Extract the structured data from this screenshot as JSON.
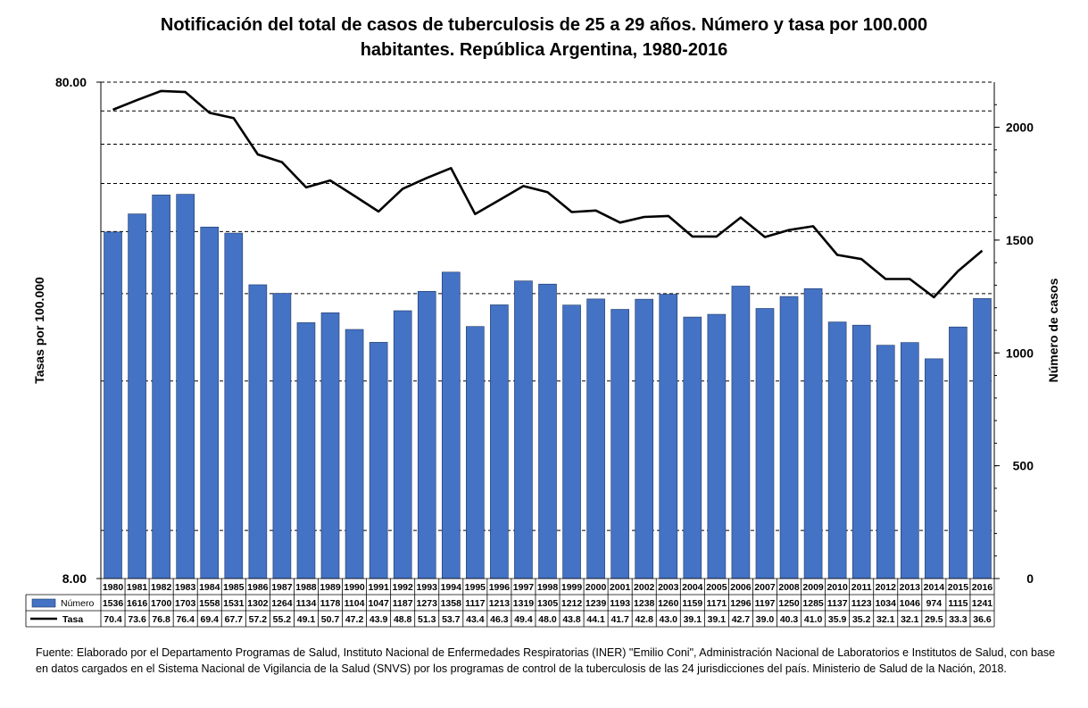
{
  "title_line1": "Notificación del total de casos de tuberculosis de 25 a 29 años. Número y tasa por 100.000",
  "title_line2": "habitantes. República Argentina, 1980-2016",
  "source": "Fuente: Elaborado por el Departamento Programas de Salud, Instituto Nacional de Enfermedades Respiratorias (INER) \"Emilio Coni\", Administración Nacional de Laboratorios e Institutos de Salud, con base en datos cargados  en el Sistema Nacional de Vigilancia de la Salud (SNVS) por los programas de control de la tuberculosis de las 24  jurisdicciones del país. Ministerio de Salud de la Nación, 2018.",
  "colors": {
    "bar": "#4472c4",
    "bar_border": "#1f3864",
    "line": "#000000",
    "grid": "#000000"
  },
  "chart_data": {
    "type": "bar+line",
    "categories": [
      "1980",
      "1981",
      "1982",
      "1983",
      "1984",
      "1985",
      "1986",
      "1987",
      "1988",
      "1989",
      "1990",
      "1991",
      "1992",
      "1993",
      "1994",
      "1995",
      "1996",
      "1997",
      "1998",
      "1999",
      "2000",
      "2001",
      "2002",
      "2003",
      "2004",
      "2005",
      "2006",
      "2007",
      "2008",
      "2009",
      "2010",
      "2011",
      "2012",
      "2013",
      "2014",
      "2015",
      "2016"
    ],
    "series": [
      {
        "name": "Número",
        "kind": "bar",
        "axis": "right",
        "values": [
          1536,
          1616,
          1700,
          1703,
          1558,
          1531,
          1302,
          1264,
          1134,
          1178,
          1104,
          1047,
          1187,
          1273,
          1358,
          1117,
          1213,
          1319,
          1305,
          1212,
          1239,
          1193,
          1238,
          1260,
          1159,
          1171,
          1296,
          1197,
          1250,
          1285,
          1137,
          1123,
          1034,
          1046,
          974,
          1115,
          1241
        ],
        "labels": [
          "1536",
          "1616",
          "1700",
          "1703",
          "1558",
          "1531",
          "1302",
          "1264",
          "1134",
          "1178",
          "1104",
          "1047",
          "1187",
          "1273",
          "1358",
          "1117",
          "1213",
          "1319",
          "1305",
          "1212",
          "1239",
          "1193",
          "1238",
          "1260",
          "1159",
          "1171",
          "1296",
          "1197",
          "1250",
          "1285",
          "1137",
          "1123",
          "1034",
          "1046",
          "974",
          "1115",
          "1241"
        ]
      },
      {
        "name": "Tasa",
        "kind": "line",
        "axis": "left",
        "values": [
          70.4,
          73.6,
          76.8,
          76.4,
          69.4,
          67.7,
          57.2,
          55.2,
          49.1,
          50.7,
          47.2,
          43.9,
          48.8,
          51.3,
          53.7,
          43.4,
          46.3,
          49.4,
          48.0,
          43.8,
          44.1,
          41.7,
          42.8,
          43.0,
          39.1,
          39.1,
          42.7,
          39.0,
          40.3,
          41.0,
          35.9,
          35.2,
          32.1,
          32.1,
          29.5,
          33.3,
          36.6
        ],
        "labels": [
          "70.4",
          "73.6",
          "76.8",
          "76.4",
          "69.4",
          "67.7",
          "57.2",
          "55.2",
          "49.1",
          "50.7",
          "47.2",
          "43.9",
          "48.8",
          "51.3",
          "53.7",
          "43.4",
          "46.3",
          "49.4",
          "48.0",
          "43.8",
          "44.1",
          "41.7",
          "42.8",
          "43.0",
          "39.1",
          "39.1",
          "42.7",
          "39.0",
          "40.3",
          "41.0",
          "35.9",
          "35.2",
          "32.1",
          "32.1",
          "29.5",
          "33.3",
          "36.6"
        ]
      }
    ],
    "y_left": {
      "label": "Tasas por 100.000",
      "scale": "log",
      "min": 8,
      "max": 80,
      "ticks": [
        "8.00",
        "80.00"
      ],
      "gridlines": [
        10,
        20,
        30,
        40,
        50,
        60,
        70,
        80
      ]
    },
    "y_right": {
      "label": "Número de casos",
      "min": 0,
      "max": 2200,
      "ticks": [
        "0",
        "500",
        "1000",
        "1500",
        "2000"
      ]
    },
    "data_table": true,
    "legend": "data-table rows"
  }
}
